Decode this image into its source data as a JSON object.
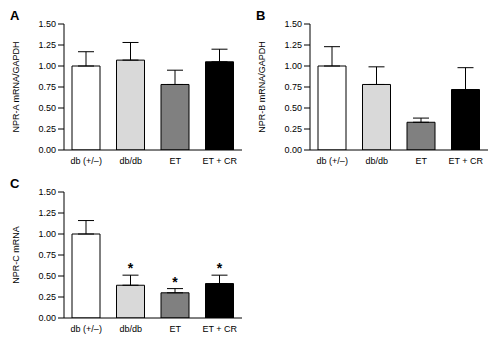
{
  "chart_data": [
    {
      "type": "bar",
      "title": "A",
      "y_label": "NPR-A mRNA/GAPDH",
      "categories": [
        "db (+/–)",
        "db/db",
        "ET",
        "ET + CR"
      ],
      "values": [
        1.0,
        1.07,
        0.78,
        1.05
      ],
      "errors": [
        0.17,
        0.21,
        0.17,
        0.15
      ],
      "colors": [
        "#ffffff",
        "#d9d9d9",
        "#808080",
        "#000000"
      ],
      "ylim": [
        0,
        1.5
      ],
      "yticks": [
        {
          "value": 0,
          "label": "0.00"
        },
        0.25,
        {
          "value": 0.5,
          "label": "0.50"
        },
        0.75,
        {
          "value": 1,
          "label": "1.00"
        },
        1.25,
        {
          "value": 1.5,
          "label": "1.50"
        }
      ],
      "grid": false
    },
    {
      "type": "bar",
      "title": "B",
      "y_label": "NPR-B mRNA/GAPDH",
      "categories": [
        "db (+/–)",
        "db/db",
        "ET",
        "ET + CR"
      ],
      "values": [
        1.0,
        0.78,
        0.33,
        0.72
      ],
      "errors": [
        0.23,
        0.21,
        0.05,
        0.26
      ],
      "colors": [
        "#ffffff",
        "#d9d9d9",
        "#808080",
        "#000000"
      ],
      "ylim": [
        0,
        1.5
      ],
      "yticks": [
        {
          "value": 0,
          "label": "0.00"
        },
        0.25,
        {
          "value": 0.5,
          "label": "0.50"
        },
        0.75,
        {
          "value": 1,
          "label": "1.00"
        },
        1.25,
        {
          "value": 1.5,
          "label": "1.50"
        }
      ],
      "grid": false
    },
    {
      "type": "bar",
      "title": "C",
      "y_label": "NPR-C mRNA",
      "categories": [
        "db (+/–)",
        "db/db",
        "ET",
        "ET + CR"
      ],
      "values": [
        1.0,
        0.39,
        0.3,
        0.41
      ],
      "errors": [
        0.16,
        0.12,
        0.05,
        0.1
      ],
      "colors": [
        "#ffffff",
        "#d9d9d9",
        "#808080",
        "#000000"
      ],
      "ylim": [
        0,
        1.5
      ],
      "yticks": [
        {
          "value": 0,
          "label": "0.00"
        },
        0.25,
        {
          "value": 0.5,
          "label": "0.50"
        },
        0.75,
        {
          "value": 1,
          "label": "1.00"
        },
        1.25,
        {
          "value": 1.5,
          "label": "1.50"
        }
      ],
      "grid": false,
      "annotations": [
        {
          "x": "db/db",
          "text": "*"
        },
        {
          "x": "ET",
          "text": "*"
        },
        {
          "x": "ET + CR",
          "text": "*"
        }
      ]
    }
  ]
}
